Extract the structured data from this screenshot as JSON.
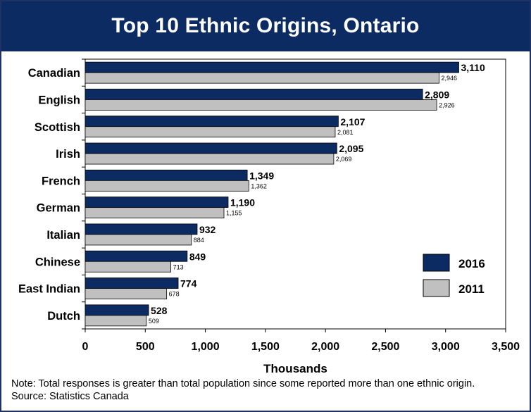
{
  "chart_data": {
    "type": "bar",
    "orientation": "horizontal",
    "title": "Top 10 Ethnic Origins, Ontario",
    "xlabel": "Thousands",
    "ylabel": "",
    "xlim": [
      0,
      3500
    ],
    "xticks": [
      0,
      500,
      1000,
      1500,
      2000,
      2500,
      3000,
      3500
    ],
    "xtick_labels": [
      "0",
      "500",
      "1,000",
      "1,500",
      "2,000",
      "2,500",
      "3,000",
      "3,500"
    ],
    "categories": [
      "Canadian",
      "English",
      "Scottish",
      "Irish",
      "French",
      "German",
      "Italian",
      "Chinese",
      "East Indian",
      "Dutch"
    ],
    "series": [
      {
        "name": "2016",
        "color": "#0b2b62",
        "values": [
          3110,
          2809,
          2107,
          2095,
          1349,
          1190,
          932,
          849,
          774,
          528
        ],
        "labels": [
          "3,110",
          "2,809",
          "2,107",
          "2,095",
          "1,349",
          "1,190",
          "932",
          "849",
          "774",
          "528"
        ]
      },
      {
        "name": "2011",
        "color": "#c0c0c0",
        "values": [
          2946,
          2926,
          2081,
          2069,
          1362,
          1155,
          884,
          713,
          678,
          509
        ],
        "labels": [
          "2,946",
          "2,926",
          "2,081",
          "2,069",
          "1,362",
          "1,155",
          "884",
          "713",
          "678",
          "509"
        ]
      }
    ],
    "legend": {
      "position": "lower-right",
      "entries": [
        "2016",
        "2011"
      ]
    },
    "grid": false
  },
  "notes": {
    "line1": "Note: Total responses is greater than total population since some reported more than one ethnic origin.",
    "line2": "Source: Statistics Canada"
  }
}
